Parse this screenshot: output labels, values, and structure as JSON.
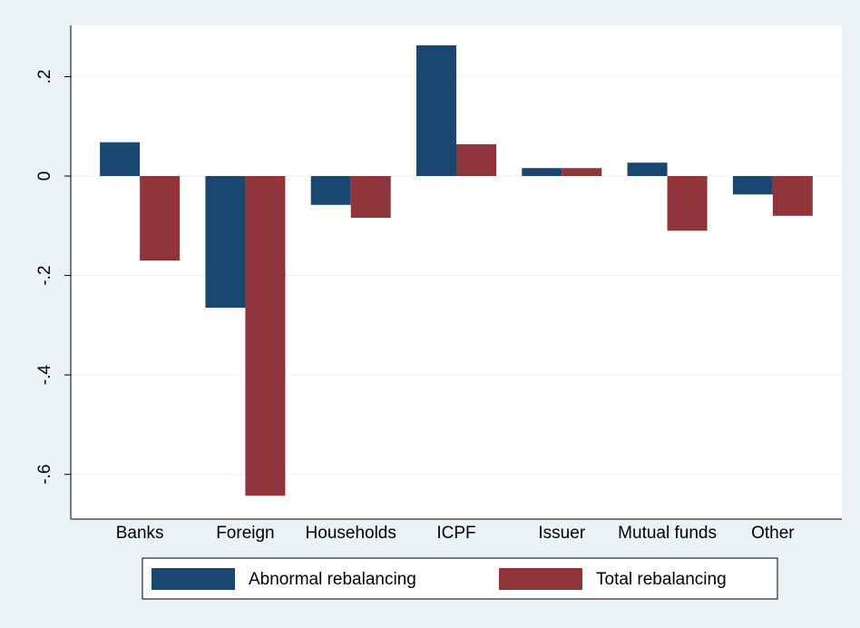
{
  "chart_data": {
    "type": "bar",
    "categories": [
      "Banks",
      "Foreign",
      "Households",
      "ICPF",
      "Issuer",
      "Mutual funds",
      "Other"
    ],
    "series": [
      {
        "name": "Abnormal rebalancing",
        "color": "#1a476f",
        "values": [
          0.068,
          -0.265,
          -0.058,
          0.263,
          0.016,
          0.027,
          -0.037
        ]
      },
      {
        "name": "Total rebalancing",
        "color": "#90353b",
        "values": [
          -0.17,
          -0.643,
          -0.084,
          0.064,
          0.016,
          -0.11,
          -0.08
        ]
      }
    ],
    "ylim": [
      -0.69,
      0.303
    ],
    "yticks": [
      {
        "value": 0.2,
        "label": ".2"
      },
      0,
      {
        "value": -0.2,
        "label": "-.2"
      },
      {
        "value": -0.4,
        "label": "-.4"
      },
      {
        "value": -0.6,
        "label": "-.6"
      }
    ],
    "grid": true
  }
}
